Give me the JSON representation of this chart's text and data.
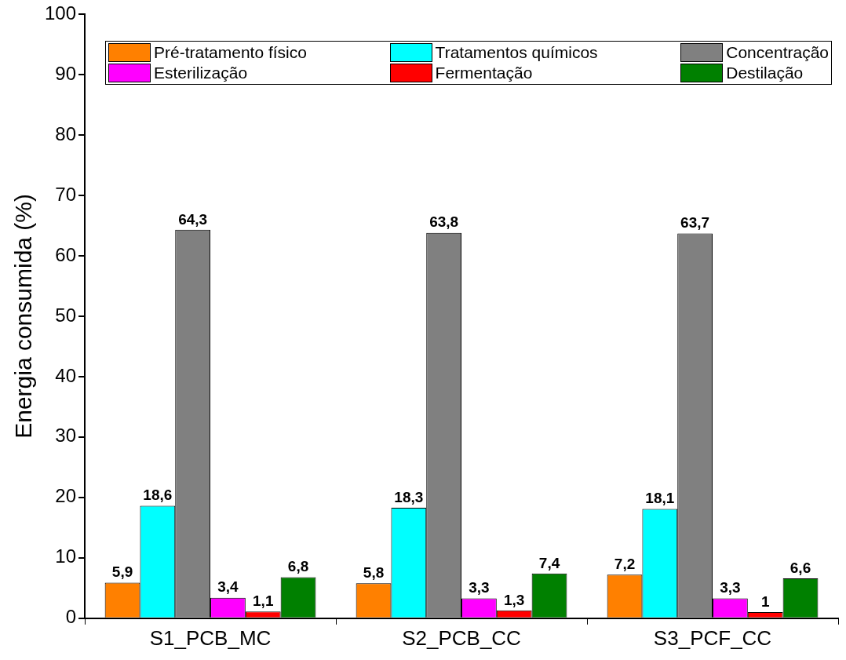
{
  "chart_data": {
    "type": "bar",
    "ylabel": "Energia consumida (%)",
    "categories": [
      "S1_PCB_MC",
      "S2_PCB_CC",
      "S3_PCF_CC"
    ],
    "series": [
      {
        "name": "Pré-tratamento físico",
        "color": "#ff8000",
        "values": [
          5.9,
          5.8,
          7.2
        ],
        "value_labels": [
          "5,9",
          "5,8",
          "7,2"
        ]
      },
      {
        "name": "Tratamentos químicos",
        "color": "#00ffff",
        "values": [
          18.6,
          18.3,
          18.1
        ],
        "value_labels": [
          "18,6",
          "18,3",
          "18,1"
        ]
      },
      {
        "name": "Concentração",
        "color": "#808080",
        "values": [
          64.3,
          63.8,
          63.7
        ],
        "value_labels": [
          "64,3",
          "63,8",
          "63,7"
        ]
      },
      {
        "name": "Esterilização",
        "color": "#ff00ff",
        "values": [
          3.4,
          3.3,
          3.3
        ],
        "value_labels": [
          "3,4",
          "3,3",
          "3,3"
        ]
      },
      {
        "name": "Fermentação",
        "color": "#ff0000",
        "values": [
          1.1,
          1.3,
          1.0
        ],
        "value_labels": [
          "1,1",
          "1,3",
          "1"
        ]
      },
      {
        "name": "Destilação",
        "color": "#008000",
        "values": [
          6.8,
          7.4,
          6.6
        ],
        "value_labels": [
          "6,8",
          "7,4",
          "6,6"
        ]
      }
    ],
    "ylim": [
      0,
      100
    ],
    "yticks": [
      0,
      10,
      20,
      30,
      40,
      50,
      60,
      70,
      80,
      90,
      100
    ],
    "grid": false,
    "legend": "top"
  }
}
